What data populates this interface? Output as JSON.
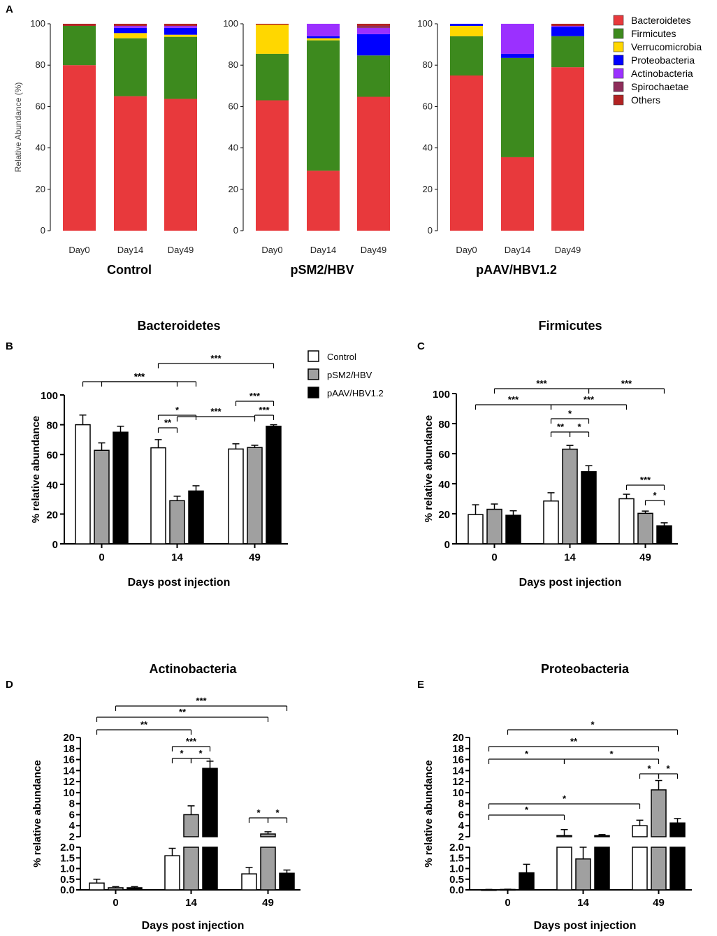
{
  "chart_data": [
    {
      "id": "A",
      "panel_label": "A",
      "type": "bar",
      "stacked": true,
      "ylabel": "Relative Abundance (%)",
      "ylim": [
        0,
        100
      ],
      "yticks": [
        "0",
        "20",
        "40",
        "60",
        "80",
        "100"
      ],
      "categories": [
        "Day0",
        "Day14",
        "Day49"
      ],
      "legend": {
        "position": "right",
        "items": [
          {
            "name": "Bacteroidetes",
            "color": "#E8393C"
          },
          {
            "name": "Firmicutes",
            "color": "#3D8A1E"
          },
          {
            "name": "Verrucomicrobia",
            "color": "#FFD700"
          },
          {
            "name": "Proteobacteria",
            "color": "#0000FF"
          },
          {
            "name": "Actinobacteria",
            "color": "#9B30FF"
          },
          {
            "name": "Spirochaetae",
            "color": "#8E2D5A"
          },
          {
            "name": "Others",
            "color": "#B22222"
          }
        ]
      },
      "groups": [
        {
          "name": "Control",
          "bars": [
            {
              "category": "Day0",
              "values": [
                80,
                19,
                0,
                0,
                0,
                0,
                1
              ]
            },
            {
              "category": "Day14",
              "values": [
                65,
                28,
                2.5,
                2.5,
                1,
                0,
                1
              ]
            },
            {
              "category": "Day49",
              "values": [
                63.7,
                30,
                1,
                3.3,
                1,
                0,
                1
              ]
            }
          ]
        },
        {
          "name": "pSM2/HBV",
          "bars": [
            {
              "category": "Day0",
              "values": [
                63,
                22.5,
                14,
                0,
                0,
                0,
                0.5
              ]
            },
            {
              "category": "Day14",
              "values": [
                29,
                63,
                1,
                1,
                6,
                0,
                0
              ]
            },
            {
              "category": "Day49",
              "values": [
                64.7,
                20,
                0,
                10.3,
                3,
                1,
                1
              ]
            }
          ]
        },
        {
          "name": "pAAV/HBV1.2",
          "bars": [
            {
              "category": "Day0",
              "values": [
                75,
                19,
                5,
                1,
                0,
                0,
                0
              ]
            },
            {
              "category": "Day14",
              "values": [
                35.5,
                48,
                0,
                2,
                14.5,
                0,
                0
              ]
            },
            {
              "category": "Day49",
              "values": [
                79,
                15,
                0,
                4.5,
                0.5,
                0,
                1
              ]
            }
          ]
        }
      ]
    },
    {
      "id": "B",
      "panel_label": "B",
      "type": "bar",
      "title": "Bacteroidetes",
      "xlabel": "Days post injection",
      "ylabel": "% relative abundance",
      "ylim": [
        0,
        100
      ],
      "yticks": [
        "0",
        "20",
        "40",
        "60",
        "80",
        "100"
      ],
      "categories": [
        "0",
        "14",
        "49"
      ],
      "series": [
        {
          "name": "Control",
          "color": "#FFFFFF",
          "values": [
            80,
            64.5,
            63.7
          ],
          "errors": [
            6.5,
            5.5,
            3.5
          ]
        },
        {
          "name": "pSM2/HBV",
          "color": "#A0A0A0",
          "values": [
            62.8,
            29,
            64.7
          ],
          "errors": [
            5,
            3,
            1.5
          ]
        },
        {
          "name": "pAAV/HBV1.2",
          "color": "#000000",
          "values": [
            75,
            35.5,
            79
          ],
          "errors": [
            4,
            3.5,
            1
          ]
        }
      ],
      "significance": [
        {
          "from": [
            1,
            0
          ],
          "to": [
            2,
            2
          ],
          "label": "***"
        },
        {
          "from": [
            0,
            0
          ],
          "to": [
            1,
            2
          ],
          "label": "***"
        },
        {
          "from": [
            0,
            1
          ],
          "to": [
            1,
            1
          ],
          "label": "***"
        },
        {
          "from": [
            1,
            1
          ],
          "to": [
            2,
            1
          ],
          "label": "***"
        },
        {
          "from": [
            1,
            0
          ],
          "to": [
            1,
            2
          ],
          "label": "*"
        },
        {
          "from": [
            1,
            0
          ],
          "to": [
            1,
            1
          ],
          "label": "**"
        },
        {
          "from": [
            2,
            0
          ],
          "to": [
            2,
            2
          ],
          "label": "***"
        },
        {
          "from": [
            2,
            1
          ],
          "to": [
            2,
            2
          ],
          "label": "***"
        }
      ]
    },
    {
      "id": "C",
      "panel_label": "C",
      "type": "bar",
      "title": "Firmicutes",
      "xlabel": "Days post injection",
      "ylabel": "% relative abundance",
      "ylim": [
        0,
        100
      ],
      "yticks": [
        "0",
        "20",
        "40",
        "60",
        "80",
        "100"
      ],
      "categories": [
        "0",
        "14",
        "49"
      ],
      "series": [
        {
          "name": "Control",
          "color": "#FFFFFF",
          "values": [
            19.5,
            28.5,
            30
          ],
          "errors": [
            6.5,
            5.5,
            3
          ]
        },
        {
          "name": "pSM2/HBV",
          "color": "#A0A0A0",
          "values": [
            23,
            63,
            20.3
          ],
          "errors": [
            3.5,
            2.5,
            1.5
          ]
        },
        {
          "name": "pAAV/HBV1.2",
          "color": "#000000",
          "values": [
            19,
            48,
            12
          ],
          "errors": [
            3,
            4,
            2
          ]
        }
      ],
      "significance": [
        {
          "from": [
            0,
            1
          ],
          "to": [
            1,
            2
          ],
          "label": "***"
        },
        {
          "from": [
            1,
            2
          ],
          "to": [
            2,
            2
          ],
          "label": "***"
        },
        {
          "from": [
            0,
            0
          ],
          "to": [
            1,
            0
          ],
          "label": "***"
        },
        {
          "from": [
            1,
            0
          ],
          "to": [
            2,
            0
          ],
          "label": "***"
        },
        {
          "from": [
            1,
            0
          ],
          "to": [
            1,
            2
          ],
          "label": "*"
        },
        {
          "from": [
            1,
            0
          ],
          "to": [
            1,
            1
          ],
          "label": "**"
        },
        {
          "from": [
            1,
            1
          ],
          "to": [
            1,
            2
          ],
          "label": "*"
        },
        {
          "from": [
            2,
            0
          ],
          "to": [
            2,
            2
          ],
          "label": "***"
        },
        {
          "from": [
            2,
            1
          ],
          "to": [
            2,
            2
          ],
          "label": "*"
        }
      ]
    },
    {
      "id": "D",
      "panel_label": "D",
      "type": "bar",
      "title": "Actinobacteria",
      "xlabel": "Days post injection",
      "ylabel": "% relative abundance",
      "broken_axis": {
        "lower_range": [
          0,
          2
        ],
        "upper_range": [
          2,
          20
        ]
      },
      "yticks_lower": [
        "0.0",
        "0.5",
        "1.0",
        "1.5",
        "2.0"
      ],
      "yticks_upper": [
        "2",
        "4",
        "6",
        "8",
        "10",
        "12",
        "14",
        "16",
        "18",
        "20"
      ],
      "categories": [
        "0",
        "14",
        "49"
      ],
      "series": [
        {
          "name": "Control",
          "color": "#FFFFFF",
          "values": [
            0.32,
            1.6,
            0.75
          ],
          "errors": [
            0.18,
            0.35,
            0.3
          ]
        },
        {
          "name": "pSM2/HBV",
          "color": "#A0A0A0",
          "values": [
            0.1,
            6,
            2.5
          ],
          "errors": [
            0.05,
            1.6,
            0.4
          ]
        },
        {
          "name": "pAAV/HBV1.2",
          "color": "#000000",
          "values": [
            0.1,
            14.4,
            0.78
          ],
          "errors": [
            0.05,
            1.3,
            0.15
          ]
        }
      ],
      "significance": [
        {
          "from": [
            0,
            1
          ],
          "to": [
            2,
            2
          ],
          "label": "***"
        },
        {
          "from": [
            0,
            0
          ],
          "to": [
            2,
            1
          ],
          "label": "**"
        },
        {
          "from": [
            0,
            0
          ],
          "to": [
            1,
            1
          ],
          "label": "**"
        },
        {
          "from": [
            1,
            0
          ],
          "to": [
            1,
            2
          ],
          "label": "***"
        },
        {
          "from": [
            1,
            0
          ],
          "to": [
            1,
            1
          ],
          "label": "*"
        },
        {
          "from": [
            1,
            1
          ],
          "to": [
            1,
            2
          ],
          "label": "*"
        },
        {
          "from": [
            2,
            0
          ],
          "to": [
            2,
            1
          ],
          "label": "*"
        },
        {
          "from": [
            2,
            1
          ],
          "to": [
            2,
            2
          ],
          "label": "*"
        }
      ]
    },
    {
      "id": "E",
      "panel_label": "E",
      "type": "bar",
      "title": "Proteobacteria",
      "xlabel": "Days post injection",
      "ylabel": "% relative abundance",
      "broken_axis": {
        "lower_range": [
          0,
          2
        ],
        "upper_range": [
          2,
          20
        ]
      },
      "yticks_lower": [
        "0.0",
        "0.5",
        "1.0",
        "1.5",
        "2.0"
      ],
      "yticks_upper": [
        "2",
        "4",
        "6",
        "8",
        "10",
        "12",
        "14",
        "16",
        "18",
        "20"
      ],
      "categories": [
        "0",
        "14",
        "49"
      ],
      "series": [
        {
          "name": "Control",
          "color": "#FFFFFF",
          "values": [
            0.01,
            2.2,
            4
          ],
          "errors": [
            0.01,
            1.1,
            1
          ]
        },
        {
          "name": "pSM2/HBV",
          "color": "#A0A0A0",
          "values": [
            0.02,
            1.45,
            10.5
          ],
          "errors": [
            0.01,
            0.55,
            1.7
          ]
        },
        {
          "name": "pAAV/HBV1.2",
          "color": "#000000",
          "values": [
            0.8,
            2.2,
            4.5
          ],
          "errors": [
            0.4,
            0.2,
            0.8
          ]
        }
      ],
      "significance": [
        {
          "from": [
            0,
            1
          ],
          "to": [
            2,
            2
          ],
          "label": "*"
        },
        {
          "from": [
            0,
            0
          ],
          "to": [
            2,
            1
          ],
          "label": "**"
        },
        {
          "from": [
            0,
            0
          ],
          "to": [
            1,
            0
          ],
          "label": "*"
        },
        {
          "from": [
            1,
            0
          ],
          "to": [
            2,
            1
          ],
          "label": "*"
        },
        {
          "from": [
            2,
            0
          ],
          "to": [
            2,
            1
          ],
          "label": "*"
        },
        {
          "from": [
            2,
            1
          ],
          "to": [
            2,
            2
          ],
          "label": "*"
        },
        {
          "from": [
            0,
            0
          ],
          "to": [
            2,
            0
          ],
          "label": "*"
        },
        {
          "from": [
            0,
            0
          ],
          "to": [
            1,
            0
          ],
          "label": "*"
        }
      ]
    }
  ],
  "legend_bd": {
    "items": [
      {
        "name": "Control",
        "color": "#FFFFFF"
      },
      {
        "name": "pSM2/HBV",
        "color": "#A0A0A0"
      },
      {
        "name": "pAAV/HBV1.2",
        "color": "#000000"
      }
    ]
  }
}
